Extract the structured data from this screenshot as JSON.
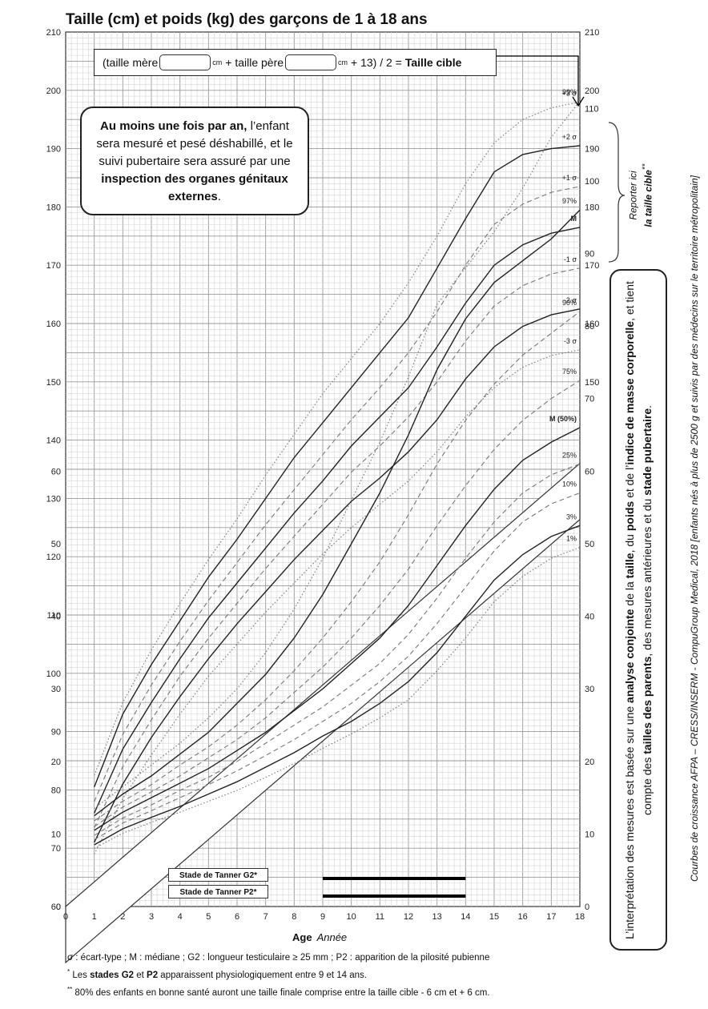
{
  "title": "Taille (cm) et poids (kg) des garçons de 1 à 18 ans",
  "target_formula": {
    "part1": "(taille mère",
    "unit": "cm",
    "part2": "+  taille père",
    "part3": "+ 13) / 2 =",
    "result": "Taille cible"
  },
  "notice": {
    "bold": "Au moins une fois par an,",
    "text1": " l’enfant sera mesuré et pesé déshabillé, et le suivi pubertaire sera assuré par une ",
    "bold2": "inspection des organes génitaux externes",
    "end": "."
  },
  "tanner": {
    "g2": "Stade de Tanner G2*",
    "p2": "Stade de Tanner P2*",
    "range": [
      9,
      14
    ]
  },
  "report_label": {
    "line1": "Reporter ici",
    "line2": "la taille cible",
    "sup": "**"
  },
  "interpretation": {
    "t1": "L’interprétation des mesures est basée sur une ",
    "b1": "analyse conjointe",
    "t2": " de la ",
    "b2": "taille",
    "t3": ", du ",
    "b3": "poids",
    "t4": " et de l’",
    "b4": "indice de masse corporelle",
    "t5": ", et tient compte des ",
    "b5": "tailles des parents",
    "t6": ", des mesures antérieures et du ",
    "b6": "stade pubertaire",
    "t7": "."
  },
  "credit": "Courbes de croissance AFPA – CRESS/INSERM - CompuGroup Medical, 2018 [enfants nés à plus de 2500 g et suivis par des médecins sur le territoire métropolitain]",
  "xaxis": {
    "title": "Age",
    "unit": "Année"
  },
  "footnotes": {
    "line1": "σ : écart-type ; M : médiane ; G2 : longueur testiculaire ≥ 25 mm ; P2 : apparition de la pilosité pubienne",
    "line2_star": "*",
    "line2_a": " Les ",
    "line2_b": "stades G2",
    "line2_c": " et ",
    "line2_d": "P2",
    "line2_e": " apparaissent physiologiquement entre 9 et 14 ans.",
    "line3_star": "**",
    "line3": " 80% des enfants en bonne santé auront une taille finale comprise entre la taille cible - 6 cm et + 6 cm."
  },
  "chart_data": [
    {
      "type": "line",
      "title": "Taille (cm)",
      "x": [
        1,
        2,
        3,
        4,
        5,
        6,
        7,
        8,
        9,
        10,
        11,
        12,
        13,
        14,
        15,
        16,
        17,
        18
      ],
      "ylim": [
        60,
        210
      ],
      "x_ticks": [
        0,
        1,
        2,
        3,
        4,
        5,
        6,
        7,
        8,
        9,
        10,
        11,
        12,
        13,
        14,
        15,
        16,
        17,
        18
      ],
      "y_ticks": [
        60,
        70,
        80,
        90,
        100,
        110,
        120,
        130,
        140,
        150,
        160,
        170,
        180,
        190,
        200,
        210
      ],
      "series": [
        {
          "name": "+3 σ",
          "style": "dotted",
          "values": [
            82.5,
            95,
            104,
            112,
            119.5,
            126.5,
            134,
            141,
            148,
            154,
            160,
            167,
            175,
            184,
            191,
            195,
            197,
            198
          ]
        },
        {
          "name": "+2 σ",
          "style": "solid",
          "values": [
            80.5,
            93,
            101.5,
            109,
            116.5,
            123,
            130,
            137,
            143,
            149,
            155,
            161,
            169.5,
            178,
            186,
            189,
            190,
            190.5
          ]
        },
        {
          "name": "+1 σ",
          "style": "dashed",
          "values": [
            78,
            89.5,
            98,
            105.5,
            112.5,
            119,
            125.5,
            131.5,
            137.5,
            143.5,
            149,
            155,
            162,
            170,
            177,
            180.5,
            182.5,
            183.5
          ]
        },
        {
          "name": "M",
          "style": "solid",
          "values": [
            76,
            87,
            95,
            102.5,
            109.5,
            115.5,
            121.5,
            127.5,
            133,
            139,
            144,
            149,
            156,
            163.5,
            170,
            173.5,
            175.5,
            176.5
          ]
        },
        {
          "name": "-1 σ",
          "style": "dashed",
          "values": [
            73.5,
            84,
            92,
            99.5,
            106,
            112,
            118,
            123.5,
            129,
            134.5,
            139,
            144,
            150,
            157,
            163,
            166.5,
            168.5,
            169.5
          ]
        },
        {
          "name": "-2 σ",
          "style": "solid",
          "values": [
            71,
            81,
            89,
            96,
            102.5,
            108.5,
            114,
            119.5,
            124.5,
            129.5,
            133.5,
            138,
            143.5,
            150.5,
            156,
            159.5,
            161.5,
            162.5
          ]
        },
        {
          "name": "-3 σ",
          "style": "dotted",
          "values": [
            69,
            78.5,
            86,
            93,
            99.5,
            105,
            110.5,
            115.5,
            120.5,
            125,
            129,
            133,
            138,
            144,
            149,
            152.5,
            154.5,
            155.5
          ]
        }
      ]
    },
    {
      "type": "line",
      "title": "Poids (kg)",
      "x": [
        1,
        2,
        3,
        4,
        5,
        6,
        7,
        8,
        9,
        10,
        11,
        12,
        13,
        14,
        15,
        16,
        17,
        18
      ],
      "ylim": [
        0,
        115
      ],
      "y_ticks": [
        0,
        10,
        20,
        30,
        40,
        50,
        60,
        70,
        80,
        90,
        100,
        110
      ],
      "series": [
        {
          "name": "99%",
          "style": "dotted",
          "values": [
            13.5,
            16.5,
            19.5,
            22.5,
            26,
            30,
            35,
            41,
            48,
            56,
            64,
            73,
            83,
            88,
            93,
            99,
            106,
            111
          ]
        },
        {
          "name": "97%",
          "style": "solid",
          "values": [
            12.5,
            15.5,
            18,
            21,
            24,
            28,
            32,
            37,
            43,
            50,
            57,
            65,
            74,
            81,
            86,
            89,
            92,
            96
          ]
        },
        {
          "name": "90%",
          "style": "dashed",
          "values": [
            11.8,
            14.5,
            16.8,
            19.5,
            22,
            25,
            28.5,
            32.5,
            37,
            42,
            47.5,
            54,
            61,
            67,
            72,
            76,
            79,
            82
          ]
        },
        {
          "name": "75%",
          "style": "dashed",
          "values": [
            11,
            13.7,
            15.8,
            18,
            20.5,
            23,
            26,
            29.5,
            33,
            37,
            41.5,
            46.5,
            52.5,
            58,
            63,
            67,
            70,
            72.5
          ]
        },
        {
          "name": "M (50%)",
          "style": "solid",
          "values": [
            10.5,
            13,
            15,
            17,
            19,
            21.5,
            24,
            27,
            30,
            33.5,
            37,
            41.5,
            47,
            52.5,
            57.5,
            61.5,
            64,
            66
          ]
        },
        {
          "name": "25%",
          "style": "dashed",
          "values": [
            9.8,
            12.2,
            14,
            16,
            17.8,
            20,
            22.5,
            25,
            27.5,
            30.5,
            33.5,
            37.5,
            42.5,
            48,
            53,
            57,
            59.5,
            61
          ]
        },
        {
          "name": "10%",
          "style": "dashed",
          "values": [
            9.2,
            11.5,
            13.2,
            15,
            16.8,
            18.7,
            20.8,
            23,
            25.5,
            28,
            31,
            34.5,
            39,
            44,
            49,
            53,
            55.5,
            57
          ]
        },
        {
          "name": "3%",
          "style": "solid",
          "values": [
            8.5,
            10.7,
            12.3,
            13.8,
            15.5,
            17.2,
            19.2,
            21.2,
            23.5,
            25.5,
            28,
            31,
            35,
            40,
            45,
            48.5,
            51,
            52.5
          ]
        },
        {
          "name": "1%",
          "style": "dotted",
          "values": [
            8,
            10.1,
            11.6,
            13,
            14.5,
            16,
            17.8,
            19.7,
            21.8,
            23.8,
            26,
            28.5,
            32.5,
            37,
            42,
            45.5,
            48,
            49.5
          ]
        }
      ]
    }
  ]
}
